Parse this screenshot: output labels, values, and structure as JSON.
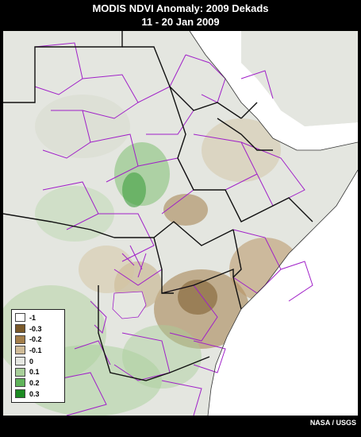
{
  "header": {
    "title": "MODIS NDVI Anomaly: 2009 Dekads",
    "subtitle": "11 - 20 Jan 2009"
  },
  "legend": {
    "items": [
      {
        "label": "-1",
        "color": "#ffffff"
      },
      {
        "label": "-0.3",
        "color": "#7a5a2a"
      },
      {
        "label": "-0.2",
        "color": "#a37e4a"
      },
      {
        "label": "-0.1",
        "color": "#cfbb98"
      },
      {
        "label": "0",
        "color": "#e6e8e2"
      },
      {
        "label": "0.1",
        "color": "#a8cf9a"
      },
      {
        "label": "0.2",
        "color": "#5fb35a"
      },
      {
        "label": "0.3",
        "color": "#1c8a22"
      }
    ]
  },
  "credit": "NASA / USGS",
  "colors": {
    "background": "#000000",
    "map_land_neutral": "#e6e8e2",
    "water": "#ffffff",
    "country_borders": "#111111",
    "admin_borders": "#a020c8"
  }
}
